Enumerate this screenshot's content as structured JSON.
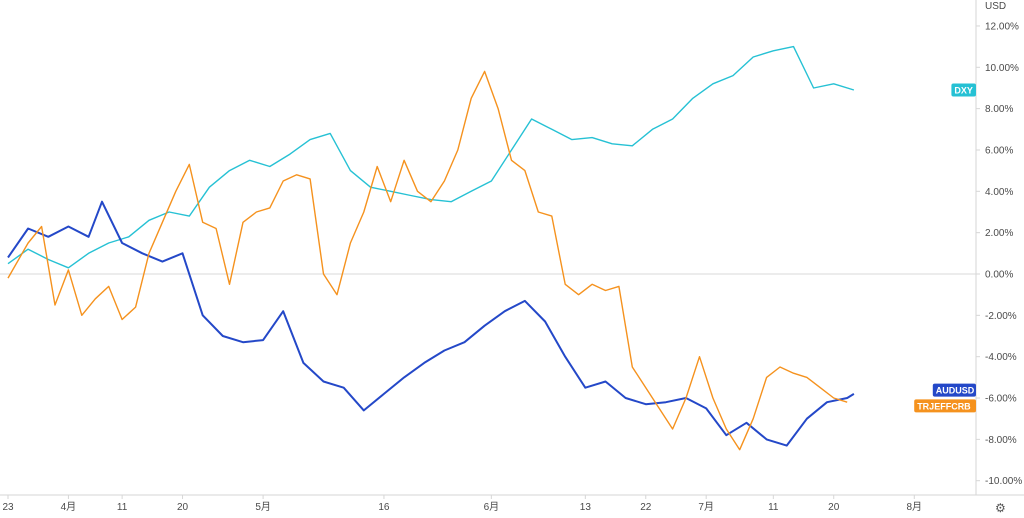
{
  "chart_data": {
    "type": "line",
    "y_unit": "USD",
    "ylim": [
      -11,
      12.5
    ],
    "y_ticks": [
      "12.00%",
      "10.00%",
      "8.00%",
      "6.00%",
      "4.00%",
      "2.00%",
      "0.00%",
      "-2.00%",
      "-4.00%",
      "-6.00%",
      "-8.00%",
      "-10.00%"
    ],
    "y_tick_values": [
      12,
      10,
      8,
      6,
      4,
      2,
      0,
      -2,
      -4,
      -6,
      -8,
      -10
    ],
    "x_ticks": [
      "23",
      "4月",
      "11",
      "20",
      "5月",
      "16",
      "6月",
      "13",
      "22",
      "7月",
      "11",
      "20",
      "8月"
    ],
    "x_tick_days": [
      0,
      9,
      17,
      26,
      38,
      56,
      72,
      86,
      95,
      104,
      114,
      123,
      135
    ],
    "x_range": [
      0,
      143
    ],
    "zero_line": true,
    "series": [
      {
        "name": "DXY",
        "color": "#26c1d4",
        "label": "DXY",
        "days": [
          0,
          3,
          6,
          9,
          12,
          15,
          18,
          21,
          24,
          27,
          30,
          33,
          36,
          39,
          42,
          45,
          48,
          51,
          54,
          57,
          60,
          63,
          66,
          69,
          72,
          75,
          78,
          81,
          84,
          87,
          90,
          93,
          96,
          99,
          102,
          105,
          108,
          111,
          114,
          117,
          120,
          123,
          126
        ],
        "values": [
          0.5,
          1.2,
          0.7,
          0.3,
          1.0,
          1.5,
          1.8,
          2.6,
          3.0,
          2.8,
          4.2,
          5.0,
          5.5,
          5.2,
          5.8,
          6.5,
          6.8,
          5.0,
          4.2,
          4.0,
          3.8,
          3.6,
          3.5,
          4.0,
          4.5,
          6.0,
          7.5,
          7.0,
          6.5,
          6.6,
          6.3,
          6.2,
          7.0,
          7.5,
          8.5,
          9.2,
          9.6,
          10.5,
          10.8,
          11.0,
          9.0,
          9.2,
          8.9
        ]
      },
      {
        "name": "AUDUSD",
        "color": "#2448c8",
        "label": "AUDUSD",
        "days": [
          0,
          3,
          6,
          9,
          12,
          14,
          17,
          20,
          23,
          26,
          29,
          32,
          35,
          38,
          41,
          44,
          47,
          50,
          53,
          56,
          59,
          62,
          65,
          68,
          71,
          74,
          77,
          80,
          83,
          86,
          89,
          92,
          95,
          98,
          101,
          104,
          107,
          110,
          113,
          116,
          119,
          122,
          125,
          126
        ],
        "values": [
          0.8,
          2.2,
          1.8,
          2.3,
          1.8,
          3.5,
          1.5,
          1.0,
          0.6,
          1.0,
          -2.0,
          -3.0,
          -3.3,
          -3.2,
          -1.8,
          -4.3,
          -5.2,
          -5.5,
          -6.6,
          -5.8,
          -5.0,
          -4.3,
          -3.7,
          -3.3,
          -2.5,
          -1.8,
          -1.3,
          -2.3,
          -4.0,
          -5.5,
          -5.2,
          -6.0,
          -6.3,
          -6.2,
          -6.0,
          -6.5,
          -7.8,
          -7.2,
          -8.0,
          -8.3,
          -7.0,
          -6.2,
          -6.0,
          -5.8
        ]
      },
      {
        "name": "TRJEFFCRB",
        "color": "#f5921e",
        "label": "TRJEFFCRB",
        "days": [
          0,
          3,
          5,
          7,
          9,
          11,
          13,
          15,
          17,
          19,
          21,
          23,
          25,
          27,
          29,
          31,
          33,
          35,
          37,
          39,
          41,
          43,
          45,
          47,
          49,
          51,
          53,
          55,
          57,
          59,
          61,
          63,
          65,
          67,
          69,
          71,
          73,
          75,
          77,
          79,
          81,
          83,
          85,
          87,
          89,
          91,
          93,
          95,
          97,
          99,
          101,
          103,
          105,
          107,
          109,
          111,
          113,
          115,
          117,
          119,
          121,
          123,
          125
        ],
        "values": [
          -0.2,
          1.5,
          2.3,
          -1.5,
          0.2,
          -2.0,
          -1.2,
          -0.6,
          -2.2,
          -1.6,
          1.0,
          2.5,
          4.0,
          5.3,
          2.5,
          2.2,
          -0.5,
          2.5,
          3.0,
          3.2,
          4.5,
          4.8,
          4.6,
          0.0,
          -1.0,
          1.5,
          3.0,
          5.2,
          3.5,
          5.5,
          4.0,
          3.5,
          4.5,
          6.0,
          8.5,
          9.8,
          8.0,
          5.5,
          5.0,
          3.0,
          2.8,
          -0.5,
          -1.0,
          -0.5,
          -0.8,
          -0.6,
          -4.5,
          -5.5,
          -6.5,
          -7.5,
          -6.0,
          -4.0,
          -6.0,
          -7.5,
          -8.5,
          -7.0,
          -5.0,
          -4.5,
          -4.8,
          -5.0,
          -5.5,
          -6.0,
          -6.2
        ]
      }
    ]
  }
}
